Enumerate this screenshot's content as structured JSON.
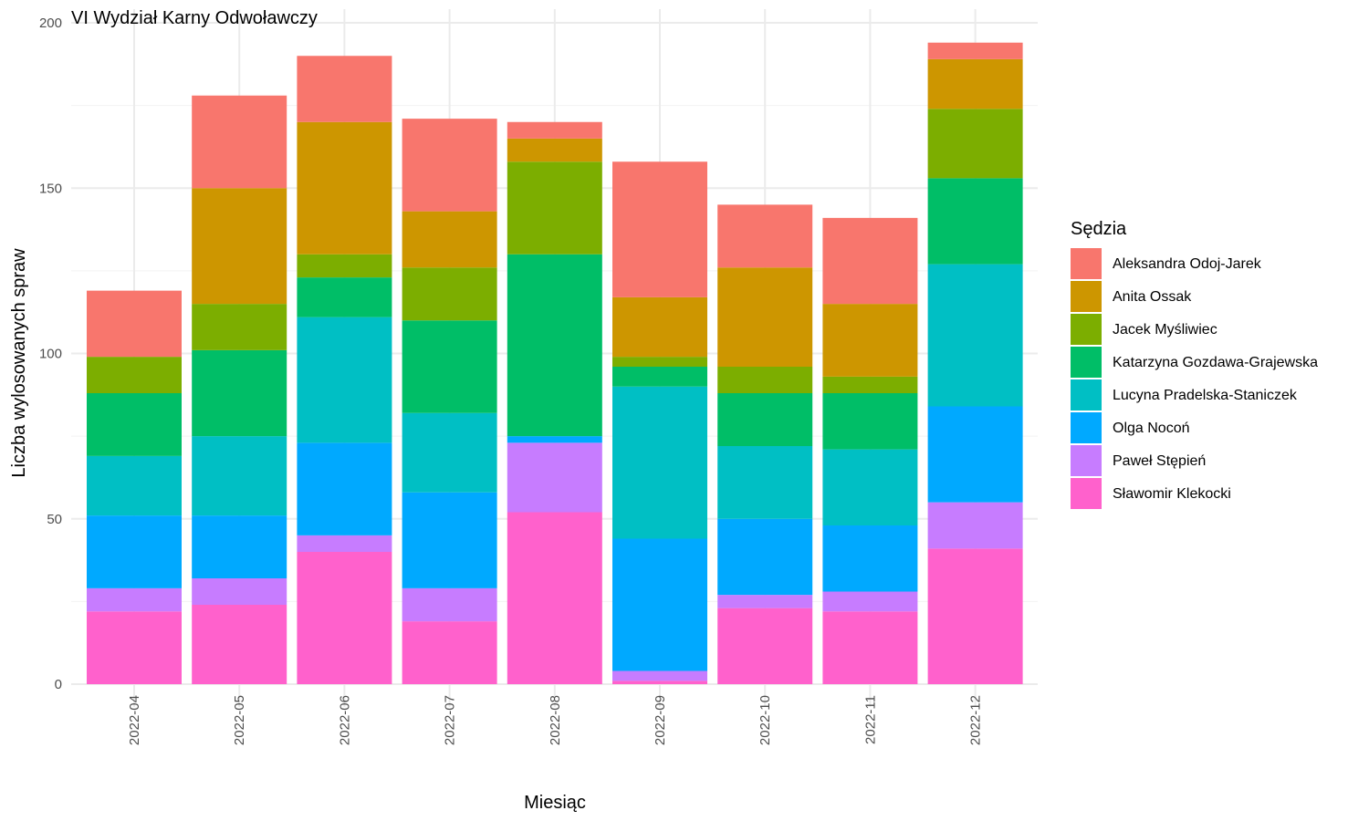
{
  "chart_data": {
    "type": "bar",
    "stacked": true,
    "title": "VI Wydział Karny Odwoławczy",
    "xlabel": "Miesiąc",
    "ylabel": "Liczba wylosowanych spraw",
    "ylim": [
      0,
      200
    ],
    "yticks": [
      0,
      50,
      100,
      150,
      200
    ],
    "grid": true,
    "legend_title": "Sędzia",
    "legend_position": "right",
    "categories": [
      "2022-04",
      "2022-05",
      "2022-06",
      "2022-07",
      "2022-08",
      "2022-09",
      "2022-10",
      "2022-11",
      "2022-12"
    ],
    "series": [
      {
        "name": "Sławomir Klekocki",
        "color": "#FF61CC",
        "values": [
          22,
          24,
          40,
          19,
          52,
          1,
          23,
          22,
          41
        ]
      },
      {
        "name": "Paweł Stępień",
        "color": "#C77CFF",
        "values": [
          7,
          8,
          5,
          10,
          21,
          3,
          4,
          6,
          14
        ]
      },
      {
        "name": "Olga Nocoń",
        "color": "#00A9FF",
        "values": [
          22,
          19,
          28,
          29,
          2,
          40,
          23,
          20,
          29
        ]
      },
      {
        "name": "Lucyna Pradelska-Staniczek",
        "color": "#00BFC4",
        "values": [
          18,
          24,
          38,
          24,
          0,
          46,
          22,
          23,
          43
        ]
      },
      {
        "name": "Katarzyna Gozdawa-Grajewska",
        "color": "#00BE67",
        "values": [
          19,
          26,
          12,
          28,
          55,
          6,
          16,
          17,
          26
        ]
      },
      {
        "name": "Jacek Myśliwiec",
        "color": "#7CAE00",
        "values": [
          11,
          14,
          7,
          16,
          28,
          3,
          8,
          5,
          21
        ]
      },
      {
        "name": "Anita Ossak",
        "color": "#CD9600",
        "values": [
          0,
          35,
          40,
          17,
          7,
          18,
          30,
          22,
          15
        ]
      },
      {
        "name": "Aleksandra Odoj-Jarek",
        "color": "#F8766D",
        "values": [
          20,
          28,
          20,
          28,
          5,
          41,
          19,
          26,
          5
        ]
      }
    ],
    "legend_order": [
      "Aleksandra Odoj-Jarek",
      "Anita Ossak",
      "Jacek Myśliwiec",
      "Katarzyna Gozdawa-Grajewska",
      "Lucyna Pradelska-Staniczek",
      "Olga Nocoń",
      "Paweł Stępień",
      "Sławomir Klekocki"
    ]
  }
}
